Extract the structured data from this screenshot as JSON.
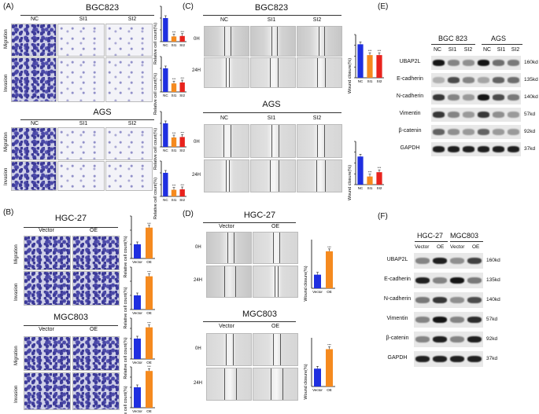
{
  "panel_labels": {
    "a": "(A)",
    "b": "(B)",
    "c": "(C)",
    "d": "(D)",
    "e": "(E)",
    "f": "(F)"
  },
  "cells": {
    "bgc823": "BGC823",
    "ags": "AGS",
    "hgc27": "HGC-27",
    "mgc803": "MGC803"
  },
  "cells_e": {
    "bgc823": "BGC 823",
    "ags": "AGS"
  },
  "groups_si": {
    "nc": "NC",
    "si1": "SI1",
    "si2": "SI2"
  },
  "groups_oe": {
    "vector": "Vector",
    "oe": "OE"
  },
  "assays": {
    "migration": "Migration",
    "invasion": "Invasion"
  },
  "timepoints": {
    "t0": "0H",
    "t24": "24H"
  },
  "yaxis": {
    "relative": "Relative cell count(%)",
    "wound": "Wound closure(%)"
  },
  "ytick_relative_si": [
    "0",
    "50",
    "100",
    "150"
  ],
  "ytick_relative_oe": [
    "0",
    "100",
    "200",
    "300"
  ],
  "ytick_oe_small": [
    "0",
    "50",
    "100",
    "150",
    "200"
  ],
  "ytick_wound": [
    "0",
    "20",
    "40",
    "60",
    "80"
  ],
  "stars": "***",
  "proteins": [
    "UBAP2L",
    "E-cadherin",
    "N-cadherin",
    "Vimentin",
    "β-catenin",
    "GAPDH"
  ],
  "kd_e": [
    "160kd",
    "135kd",
    "140kd",
    "57kd",
    "92kd",
    "37kd"
  ],
  "kd_f": [
    "160kd",
    "135kd",
    "140kd",
    "57kd",
    "92kd",
    "37kd"
  ],
  "colors": {
    "nc": "#1f2fe0",
    "si1": "#f58a1f",
    "si2": "#e8231d",
    "vector": "#1f2fe0",
    "oe": "#f58a1f"
  },
  "chart_data": [
    {
      "type": "bar",
      "title": "BGC823 Migration",
      "categories": [
        "NC",
        "SI1",
        "SI2"
      ],
      "values": [
        100,
        22,
        24
      ],
      "ylabel": "Relative cell count(%)",
      "ylim": [
        0,
        150
      ]
    },
    {
      "type": "bar",
      "title": "BGC823 Invasion",
      "categories": [
        "NC",
        "SI1",
        "SI2"
      ],
      "values": [
        100,
        36,
        40
      ],
      "ylabel": "Relative cell count(%)",
      "ylim": [
        0,
        150
      ]
    },
    {
      "type": "bar",
      "title": "AGS Migration",
      "categories": [
        "NC",
        "SI1",
        "SI2"
      ],
      "values": [
        100,
        40,
        42
      ],
      "ylabel": "Relative cell count(%)",
      "ylim": [
        0,
        150
      ]
    },
    {
      "type": "bar",
      "title": "AGS Invasion",
      "categories": [
        "NC",
        "SI1",
        "SI2"
      ],
      "values": [
        100,
        28,
        30
      ],
      "ylabel": "Relative cell count(%)",
      "ylim": [
        0,
        150
      ]
    },
    {
      "type": "bar",
      "title": "HGC-27 Migration",
      "categories": [
        "Vector",
        "OE"
      ],
      "values": [
        100,
        218
      ],
      "ylabel": "Relative cell count(%)",
      "ylim": [
        0,
        300
      ]
    },
    {
      "type": "bar",
      "title": "HGC-27 Invasion",
      "categories": [
        "Vector",
        "OE"
      ],
      "values": [
        100,
        235
      ],
      "ylabel": "Relative cell count(%)",
      "ylim": [
        0,
        300
      ]
    },
    {
      "type": "bar",
      "title": "MGC803 Migration",
      "categories": [
        "Vector",
        "OE"
      ],
      "values": [
        100,
        155
      ],
      "ylabel": "Relative cell count(%)",
      "ylim": [
        0,
        200
      ]
    },
    {
      "type": "bar",
      "title": "MGC803 Invasion",
      "categories": [
        "Vector",
        "OE"
      ],
      "values": [
        100,
        180
      ],
      "ylabel": "Relative cell count(%)",
      "ylim": [
        0,
        200
      ]
    },
    {
      "type": "bar",
      "title": "BGC823 Wound closure",
      "categories": [
        "NC",
        "SI1",
        "SI2"
      ],
      "values": [
        62,
        42,
        42
      ],
      "ylabel": "Wound closure(%)",
      "ylim": [
        0,
        80
      ]
    },
    {
      "type": "bar",
      "title": "AGS Wound closure",
      "categories": [
        "NC",
        "SI1",
        "SI2"
      ],
      "values": [
        52,
        15,
        23
      ],
      "ylabel": "Wound closure(%)",
      "ylim": [
        0,
        80
      ]
    },
    {
      "type": "bar",
      "title": "HGC-27 Wound closure",
      "categories": [
        "Vector",
        "OE"
      ],
      "values": [
        14,
        38
      ],
      "ylabel": "Wound closure(%)",
      "ylim": [
        0,
        50
      ]
    },
    {
      "type": "bar",
      "title": "MGC803 Wound closure",
      "categories": [
        "Vector",
        "OE"
      ],
      "values": [
        22,
        46
      ],
      "ylabel": "Wound closure(%)",
      "ylim": [
        0,
        60
      ]
    }
  ]
}
